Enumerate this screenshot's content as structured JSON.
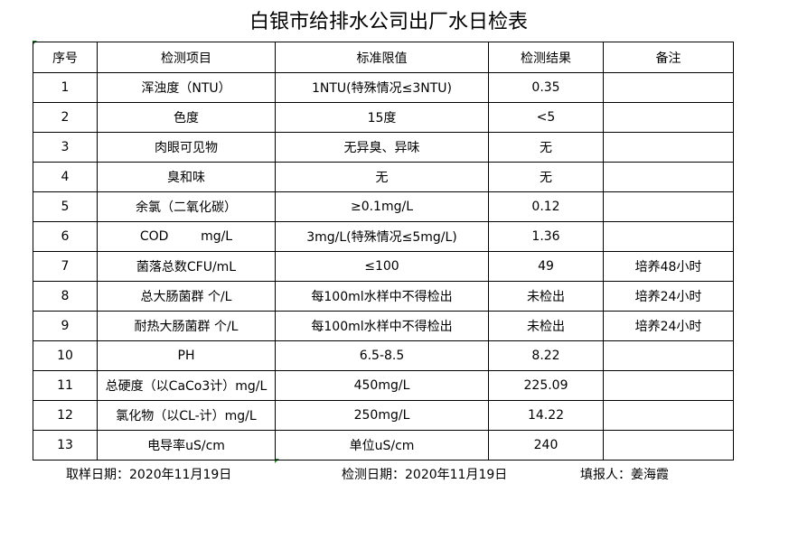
{
  "title": "白银市给排水公司出厂水日检表",
  "headers": [
    "序号",
    "检测项目",
    "标准限值",
    "检测结果",
    "备注"
  ],
  "rows": [
    [
      "1",
      "浑浊度（NTU）",
      "1NTU(特殊情况≤3NTU)",
      "0.35",
      ""
    ],
    [
      "2",
      "色度",
      "15度",
      "<5",
      ""
    ],
    [
      "3",
      "肉眼可见物",
      "无异臭、异味",
      "无",
      ""
    ],
    [
      "4",
      "臭和味",
      "无",
      "无",
      ""
    ],
    [
      "5",
      "余氯（二氧化碳）",
      "≥0.1mg/L",
      "0.12",
      ""
    ],
    [
      "6",
      "COD        mg/L",
      "3mg/L(特殊情况≤5mg/L)",
      "1.36",
      ""
    ],
    [
      "7",
      "菌落总数CFU/mL",
      "≤100",
      "49",
      "培养48小时"
    ],
    [
      "8",
      "总大肠菌群 个/L",
      "每100ml水样中不得检出",
      "未检出",
      "培养24小时"
    ],
    [
      "9",
      "耐热大肠菌群 个/L",
      "每100ml水样中不得检出",
      "未检出",
      "培养24小时"
    ],
    [
      "10",
      "PH",
      "6.5-8.5",
      "8.22",
      ""
    ],
    [
      "11",
      "总硬度（以CaCo3计）mg/L",
      "450mg/L",
      "225.09",
      ""
    ],
    [
      "12",
      "氯化物（以CL-计）mg/L",
      "250mg/L",
      "14.22",
      ""
    ],
    [
      "13",
      "电导率uS/cm",
      "单位uS/cm",
      "240",
      ""
    ]
  ],
  "footer": {
    "sample_date": "取样日期：2020年11月19日",
    "test_date": "检测日期：2020年11月19日",
    "reporter": "填报人：姜海霞"
  }
}
